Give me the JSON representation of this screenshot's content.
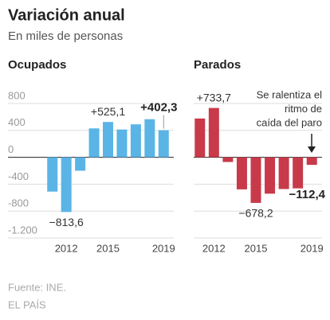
{
  "title": "Variación anual",
  "subtitle": "En miles de personas",
  "source": "Fuente: INE.",
  "credit": "EL PAÍS",
  "chart_data": [
    {
      "type": "bar",
      "title": "Ocupados",
      "categories": [
        null,
        "2012",
        null,
        null,
        "2015",
        null,
        null,
        null,
        "2019"
      ],
      "values": [
        -510,
        -813.6,
        -200,
        430,
        525.1,
        413,
        490,
        566,
        402.3
      ],
      "value_labels": [
        null,
        "−813,6",
        null,
        null,
        "+525,1",
        null,
        null,
        null,
        "+402,3"
      ],
      "highlight": 8,
      "color": "#5ab4e6",
      "ylim": [
        -1200,
        800
      ],
      "yticks": [
        800,
        400,
        0,
        -400,
        -800,
        {
          "value": -1200,
          "label": "-1.200"
        }
      ],
      "tick_labels": true,
      "grid": true
    },
    {
      "type": "bar",
      "title": "Parados",
      "categories": [
        null,
        "2012",
        null,
        null,
        "2015",
        null,
        null,
        null,
        "2019"
      ],
      "values": [
        577,
        733.7,
        -70,
        -477,
        -678.2,
        -541,
        -472,
        -462,
        -112.4
      ],
      "value_labels": [
        null,
        "+733,7",
        null,
        null,
        "−678,2",
        null,
        null,
        null,
        "−112,4"
      ],
      "highlight": 8,
      "annotation": [
        "Se ralentiza el",
        "ritmo de",
        "caída del paro"
      ],
      "color": "#c83a4a",
      "ylim": [
        -1200,
        800
      ],
      "yticks": [
        800,
        400,
        0,
        -400,
        -800,
        {
          "value": -1200,
          "label": "-1.200"
        }
      ],
      "tick_labels": false,
      "grid": true
    }
  ]
}
